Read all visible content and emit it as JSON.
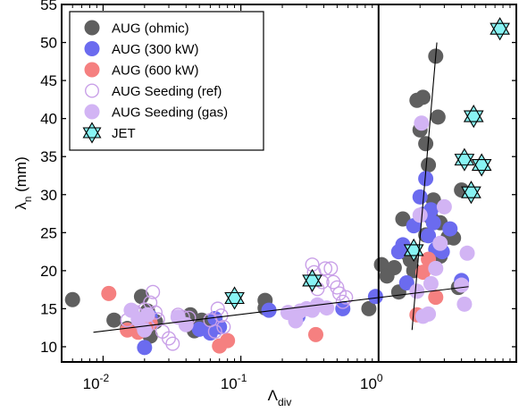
{
  "chart_data": {
    "type": "scatter",
    "xscale": "log",
    "xlim": [
      0.005,
      10
    ],
    "ylim": [
      8,
      55
    ],
    "xticks": [
      0.01,
      0.1,
      1
    ],
    "xtick_labels": [
      {
        "base": "10",
        "exp": "-2"
      },
      {
        "base": "10",
        "exp": "-1"
      },
      {
        "base": "10",
        "exp": "0"
      }
    ],
    "yticks": [
      10,
      15,
      20,
      25,
      30,
      35,
      40,
      45,
      50,
      55
    ],
    "xlabel": {
      "main": "Λ",
      "sub": "div"
    },
    "ylabel": {
      "main": "λ",
      "sub": "n",
      "suffix": " (mm)"
    },
    "legend_position": "top-left",
    "vline_x": 1,
    "series": [
      {
        "name": "AUG (ohmic)",
        "marker": "circle-filled",
        "color": "#5f5f5f",
        "points": [
          [
            0.006,
            16.2
          ],
          [
            0.012,
            13.5
          ],
          [
            0.015,
            12.4
          ],
          [
            0.019,
            16.6
          ],
          [
            0.021,
            14.7
          ],
          [
            0.022,
            11.4
          ],
          [
            0.024,
            13.3
          ],
          [
            0.039,
            13.8
          ],
          [
            0.043,
            14.2
          ],
          [
            0.046,
            12.1
          ],
          [
            0.049,
            12.6
          ],
          [
            0.052,
            13.5
          ],
          [
            0.055,
            13.0
          ],
          [
            0.062,
            12.5
          ],
          [
            0.15,
            16.1
          ],
          [
            0.15,
            15.1
          ],
          [
            0.85,
            15.0
          ],
          [
            1.05,
            20.8
          ],
          [
            1.15,
            19.3
          ],
          [
            1.3,
            20.4
          ],
          [
            1.4,
            17.2
          ],
          [
            1.5,
            26.8
          ],
          [
            1.6,
            22.3
          ],
          [
            1.7,
            21.4
          ],
          [
            1.8,
            20.0
          ],
          [
            1.9,
            42.4
          ],
          [
            2.0,
            38.5
          ],
          [
            2.1,
            42.8
          ],
          [
            2.2,
            36.7
          ],
          [
            2.3,
            33.9
          ],
          [
            2.5,
            29.3
          ],
          [
            2.6,
            48.2
          ],
          [
            2.7,
            40.2
          ],
          [
            2.2,
            24.7
          ],
          [
            2.4,
            27.0
          ],
          [
            2.8,
            26.3
          ],
          [
            3.2,
            24.4
          ],
          [
            2.8,
            21.9
          ],
          [
            3.5,
            24.3
          ],
          [
            3.8,
            17.8
          ],
          [
            4.0,
            30.6
          ]
        ]
      },
      {
        "name": "AUG (300 kW)",
        "marker": "circle-filled",
        "color": "#6b6bef",
        "points": [
          [
            0.02,
            9.9
          ],
          [
            0.02,
            13.1
          ],
          [
            0.022,
            13.9
          ],
          [
            0.05,
            12.3
          ],
          [
            0.06,
            11.8
          ],
          [
            0.065,
            13.7
          ],
          [
            0.07,
            12.6
          ],
          [
            0.16,
            14.8
          ],
          [
            0.26,
            14.0
          ],
          [
            0.55,
            15.0
          ],
          [
            0.95,
            16.6
          ],
          [
            1.4,
            22.5
          ],
          [
            1.5,
            23.4
          ],
          [
            1.6,
            18.4
          ],
          [
            1.8,
            25.9
          ],
          [
            2.0,
            29.7
          ],
          [
            2.1,
            27.4
          ],
          [
            2.2,
            32.1
          ],
          [
            2.3,
            24.6
          ],
          [
            2.4,
            28.0
          ],
          [
            2.5,
            26.3
          ],
          [
            2.6,
            22.8
          ],
          [
            2.9,
            22.5
          ],
          [
            3.3,
            25.5
          ],
          [
            4.0,
            18.7
          ]
        ]
      },
      {
        "name": "AUG (600 kW)",
        "marker": "circle-filled",
        "color": "#f58080",
        "points": [
          [
            0.011,
            17.0
          ],
          [
            0.015,
            12.2
          ],
          [
            0.018,
            11.9
          ],
          [
            0.022,
            13.1
          ],
          [
            0.07,
            10.1
          ],
          [
            0.08,
            10.8
          ],
          [
            0.35,
            11.6
          ],
          [
            1.9,
            14.2
          ],
          [
            2.1,
            19.8
          ],
          [
            2.3,
            21.5
          ],
          [
            2.6,
            16.5
          ]
        ]
      },
      {
        "name": "AUG Seeding (ref)",
        "marker": "circle-open",
        "color": "#c9a0e8",
        "points": [
          [
            0.015,
            13.5
          ],
          [
            0.017,
            14.6
          ],
          [
            0.018,
            14.2
          ],
          [
            0.019,
            13.0
          ],
          [
            0.02,
            14.9
          ],
          [
            0.021,
            12.7
          ],
          [
            0.022,
            15.8
          ],
          [
            0.023,
            17.2
          ],
          [
            0.024,
            14.5
          ],
          [
            0.025,
            13.6
          ],
          [
            0.027,
            12.0
          ],
          [
            0.03,
            11.1
          ],
          [
            0.032,
            10.4
          ],
          [
            0.035,
            14.2
          ],
          [
            0.038,
            13.9
          ],
          [
            0.042,
            13.8
          ],
          [
            0.06,
            13.5
          ],
          [
            0.065,
            12.0
          ],
          [
            0.068,
            15.0
          ],
          [
            0.072,
            14.1
          ],
          [
            0.075,
            12.6
          ],
          [
            0.33,
            20.8
          ],
          [
            0.34,
            19.8
          ],
          [
            0.36,
            17.6
          ],
          [
            0.39,
            18.5
          ],
          [
            0.41,
            20.3
          ],
          [
            0.45,
            20.3
          ],
          [
            0.47,
            18.5
          ],
          [
            0.5,
            17.8
          ],
          [
            0.52,
            17.0
          ],
          [
            0.55,
            15.9
          ],
          [
            0.58,
            16.5
          ]
        ]
      },
      {
        "name": "AUG Seeding (gas)",
        "marker": "circle-filled",
        "color": "#d2b4f4",
        "points": [
          [
            0.016,
            14.8
          ],
          [
            0.018,
            13.6
          ],
          [
            0.02,
            12.2
          ],
          [
            0.021,
            14.2
          ],
          [
            0.035,
            13.9
          ],
          [
            0.04,
            12.9
          ],
          [
            0.22,
            14.5
          ],
          [
            0.25,
            13.4
          ],
          [
            0.27,
            14.7
          ],
          [
            0.3,
            15.0
          ],
          [
            0.33,
            14.8
          ],
          [
            0.36,
            15.5
          ],
          [
            0.42,
            15.1
          ],
          [
            1.9,
            17.3
          ],
          [
            2.0,
            27.3
          ],
          [
            2.05,
            39.4
          ],
          [
            2.1,
            14.0
          ],
          [
            2.3,
            14.3
          ],
          [
            2.4,
            18.3
          ],
          [
            2.6,
            20.3
          ],
          [
            2.8,
            23.6
          ],
          [
            3.0,
            28.4
          ],
          [
            4.0,
            18.1
          ],
          [
            4.2,
            15.6
          ],
          [
            4.4,
            22.3
          ]
        ]
      },
      {
        "name": "JET",
        "marker": "hexagram",
        "color": "#88f4f4",
        "points": [
          [
            0.09,
            16.4
          ],
          [
            0.33,
            18.7
          ],
          [
            1.8,
            22.7
          ],
          [
            4.2,
            34.6
          ],
          [
            4.7,
            30.3
          ],
          [
            4.9,
            40.3
          ],
          [
            5.6,
            33.9
          ],
          [
            7.6,
            51.8
          ]
        ]
      }
    ],
    "fit_lines": [
      {
        "x": [
          0.0085,
          4.5
        ],
        "y": [
          11.9,
          17.9
        ]
      },
      {
        "x": [
          1.75,
          2.65
        ],
        "y": [
          12.2,
          50.0
        ]
      }
    ]
  }
}
